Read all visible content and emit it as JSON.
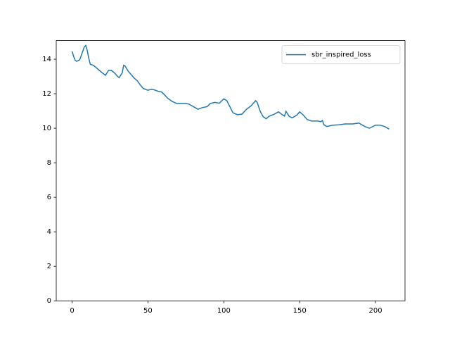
{
  "chart_data": {
    "type": "line",
    "x": [
      0,
      1,
      2,
      3,
      5,
      7,
      8,
      9,
      10,
      11,
      12,
      14,
      16,
      18,
      20,
      22,
      24,
      26,
      28,
      30,
      31,
      33,
      34,
      35,
      37,
      39,
      41,
      43,
      45,
      47,
      50,
      52,
      53,
      55,
      57,
      59,
      61,
      63,
      66,
      69,
      72,
      75,
      77,
      79,
      83,
      86,
      89,
      91,
      94,
      97,
      100,
      102,
      104,
      106,
      109,
      112,
      115,
      118,
      121,
      122,
      124,
      126,
      128,
      130,
      133,
      136,
      138,
      140,
      141,
      143,
      145,
      148,
      150,
      152,
      155,
      158,
      162,
      164,
      165,
      166,
      168,
      172,
      176,
      180,
      185,
      189,
      193,
      196,
      200,
      203,
      206,
      209
    ],
    "series": [
      {
        "name": "sbr_inspired_loss",
        "color": "#1f77b4",
        "values": [
          14.45,
          14.17,
          13.93,
          13.88,
          13.96,
          14.45,
          14.7,
          14.8,
          14.5,
          14.05,
          13.7,
          13.65,
          13.5,
          13.35,
          13.2,
          13.07,
          13.35,
          13.35,
          13.2,
          13.0,
          12.93,
          13.2,
          13.65,
          13.6,
          13.3,
          13.1,
          12.9,
          12.75,
          12.5,
          12.3,
          12.2,
          12.25,
          12.25,
          12.2,
          12.13,
          12.1,
          11.93,
          11.74,
          11.55,
          11.43,
          11.43,
          11.43,
          11.4,
          11.3,
          11.1,
          11.2,
          11.25,
          11.43,
          11.5,
          11.45,
          11.7,
          11.6,
          11.25,
          10.9,
          10.78,
          10.82,
          11.1,
          11.3,
          11.6,
          11.5,
          10.98,
          10.66,
          10.55,
          10.7,
          10.8,
          10.95,
          10.82,
          10.7,
          10.98,
          10.7,
          10.6,
          10.75,
          10.95,
          10.8,
          10.5,
          10.42,
          10.42,
          10.38,
          10.45,
          10.2,
          10.1,
          10.18,
          10.2,
          10.25,
          10.25,
          10.3,
          10.1,
          10.0,
          10.18,
          10.18,
          10.1,
          9.95
        ]
      }
    ],
    "xlim": [
      -10.45,
      219.45
    ],
    "ylim": [
      0,
      15.08
    ],
    "xticks": [
      0,
      50,
      100,
      150,
      200
    ],
    "yticks": [
      0,
      2,
      4,
      6,
      8,
      10,
      12,
      14
    ],
    "legend": "upper right"
  }
}
